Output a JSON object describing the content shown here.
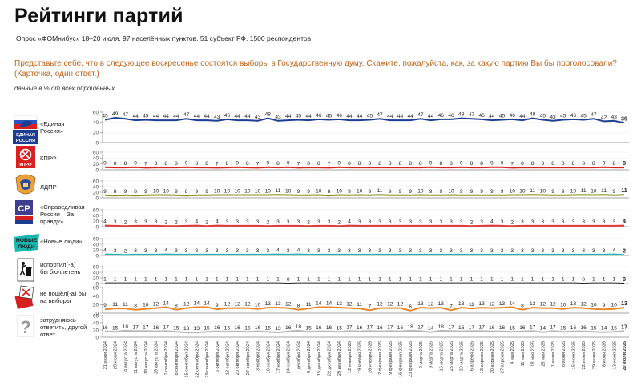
{
  "title": "Рейтинги партий",
  "subtitle": "Опрос «ФОМнибус» 18–20 июля. 97 населённых пунктов. 51 субъект РФ. 1500 респондентов.",
  "question": "Представьте себе, что в следующее воскресенье состоятся выборы в Государственную думу. Скажите, пожалуйста, как, за какую партию Вы бы проголосовали? (Карточка, один ответ.)",
  "note": "данные в % от всех опрошенных",
  "logos": {
    "er": "ЕДИНАЯ РОССИЯ",
    "kprf": "КПРФ",
    "sr": "СР",
    "nl": "НОВЫЕ ЛЮДИ"
  },
  "colors": {
    "er": "#1d3d8f",
    "kprf": "#d92020",
    "ldpr": "#8a8f1e",
    "sr": "#e03a3a",
    "nl": "#19b7b0",
    "spoil": "#222222",
    "noVote": "#e8862a",
    "unsure": "#b8b8b8"
  },
  "chart_data": {
    "type": "line",
    "x": [
      "21 июля 2024",
      "28 июля 2024",
      "4 августа 2024",
      "11 августа 2024",
      "18 августа 2024",
      "25 августа 2024",
      "1 сентября 2024",
      "8 сентября 2024",
      "15 сентября 2024",
      "22 сентября 2024",
      "29 сентября 2024",
      "6 октября 2024",
      "13 октября 2024",
      "20 октября 2024",
      "27 октября 2024",
      "3 ноября 2024",
      "10 ноября 2024",
      "17 ноября 2024",
      "24 ноября 2024",
      "1 декабря 2024",
      "8 декабря 2024",
      "15 декабря 2024",
      "22 декабря 2024",
      "29 декабря 2024",
      "12 января 2025",
      "19 января 2025",
      "26 января 2025",
      "2 февраля 2025",
      "9 февраля 2025",
      "16 февраля 2025",
      "23 февраля 2025",
      "2 марта 2025",
      "9 марта 2025",
      "16 марта 2025",
      "23 марта 2025",
      "30 марта 2025",
      "6 апреля 2025",
      "13 апреля 2025",
      "20 апреля 2025",
      "27 апреля 2025",
      "4 мая 2025",
      "11 мая 2025",
      "18 мая 2025",
      "25 мая 2025",
      "1 июня 2025",
      "8 июня 2025",
      "15 июня 2025",
      "22 июня 2025",
      "29 июня 2025",
      "6 июля 2025",
      "13 июля 2025",
      "20 июля 2025"
    ],
    "ylim": [
      0,
      60
    ],
    "yticks": [
      0,
      20,
      40,
      60
    ],
    "series": [
      {
        "key": "er",
        "name": "«Единая Россия»",
        "values": [
          45,
          49,
          47,
          44,
          45,
          44,
          44,
          44,
          47,
          44,
          44,
          43,
          46,
          44,
          44,
          43,
          48,
          43,
          44,
          45,
          44,
          46,
          45,
          46,
          44,
          44,
          45,
          47,
          44,
          44,
          44,
          47,
          44,
          46,
          46,
          48,
          47,
          46,
          44,
          45,
          46,
          44,
          48,
          45,
          43,
          45,
          46,
          45,
          47,
          42,
          43,
          39
        ]
      },
      {
        "key": "kprf",
        "name": "КПРФ",
        "values": [
          9,
          8,
          8,
          9,
          7,
          8,
          8,
          8,
          9,
          8,
          8,
          7,
          8,
          9,
          8,
          7,
          9,
          8,
          9,
          7,
          8,
          8,
          7,
          9,
          8,
          8,
          8,
          8,
          8,
          8,
          8,
          8,
          9,
          8,
          8,
          9,
          8,
          8,
          9,
          9,
          7,
          8,
          8,
          8,
          8,
          8,
          8,
          8,
          8,
          9,
          8,
          8
        ]
      },
      {
        "key": "ldpr",
        "name": "ЛДПР",
        "values": [
          9,
          8,
          9,
          8,
          9,
          10,
          10,
          9,
          8,
          9,
          9,
          10,
          10,
          10,
          10,
          10,
          10,
          11,
          10,
          9,
          9,
          10,
          8,
          10,
          9,
          10,
          9,
          11,
          9,
          9,
          9,
          10,
          9,
          9,
          10,
          9,
          9,
          9,
          9,
          9,
          10,
          10,
          11,
          10,
          9,
          9,
          10,
          11,
          10,
          11,
          9,
          11
        ]
      },
      {
        "key": "sr",
        "name": "«Справедливая Россия – За правду»",
        "values": [
          4,
          3,
          2,
          3,
          3,
          3,
          2,
          2,
          3,
          4,
          2,
          4,
          3,
          3,
          3,
          3,
          2,
          3,
          3,
          3,
          2,
          3,
          3,
          2,
          4,
          3,
          3,
          3,
          3,
          3,
          3,
          3,
          3,
          3,
          3,
          3,
          2,
          3,
          4,
          3,
          2,
          3,
          3,
          3,
          3,
          3,
          3,
          3,
          3,
          3,
          3,
          4
        ]
      },
      {
        "key": "nl",
        "name": "«Новые люди»",
        "values": [
          4,
          3,
          2,
          3,
          3,
          3,
          4,
          3,
          3,
          3,
          3,
          3,
          3,
          3,
          3,
          3,
          3,
          4,
          3,
          4,
          3,
          3,
          3,
          3,
          3,
          3,
          3,
          3,
          3,
          3,
          3,
          3,
          3,
          3,
          3,
          3,
          3,
          3,
          3,
          3,
          3,
          3,
          3,
          3,
          3,
          3,
          3,
          3,
          3,
          3,
          4,
          2
        ]
      },
      {
        "key": "spoil",
        "name": "испортил(-а) бы бюллетень",
        "values": [
          1,
          1,
          1,
          1,
          1,
          1,
          1,
          1,
          1,
          1,
          1,
          1,
          1,
          1,
          1,
          1,
          1,
          1,
          0,
          1,
          1,
          1,
          1,
          1,
          1,
          1,
          1,
          1,
          1,
          1,
          1,
          1,
          1,
          1,
          1,
          1,
          1,
          1,
          1,
          1,
          1,
          1,
          1,
          1,
          1,
          1,
          1,
          0,
          1,
          1,
          1,
          0
        ]
      },
      {
        "key": "noVote",
        "name": "не пошёл(-а) бы на выборы",
        "values": [
          9,
          11,
          11,
          8,
          10,
          12,
          14,
          8,
          12,
          14,
          14,
          9,
          12,
          12,
          12,
          10,
          13,
          13,
          12,
          8,
          11,
          14,
          14,
          13,
          12,
          11,
          7,
          12,
          12,
          12,
          6,
          13,
          12,
          13,
          7,
          13,
          11,
          13,
          12,
          13,
          14,
          8,
          13,
          12,
          12,
          10,
          13,
          12,
          10,
          9,
          10,
          13
        ]
      },
      {
        "key": "unsure",
        "name": "затрудняюсь ответить, другой ответ",
        "values": [
          16,
          15,
          18,
          17,
          17,
          16,
          17,
          15,
          13,
          13,
          15,
          16,
          15,
          16,
          15,
          16,
          15,
          13,
          16,
          18,
          15,
          16,
          16,
          15,
          17,
          16,
          17,
          16,
          17,
          16,
          18,
          17,
          14,
          18,
          17,
          16,
          17,
          17,
          16,
          16,
          15,
          16,
          17,
          14,
          17,
          15,
          16,
          16,
          15,
          14,
          15,
          17
        ]
      }
    ]
  }
}
